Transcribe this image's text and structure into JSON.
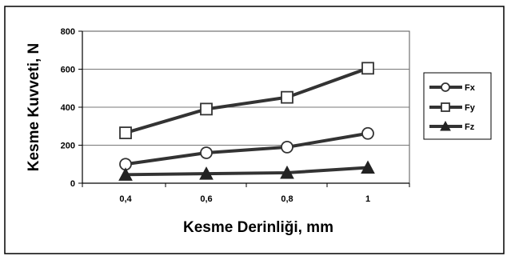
{
  "chart_data": {
    "type": "line",
    "title": "",
    "xlabel": "Kesme Derinliği, mm",
    "ylabel": "Kesme Kuvveti, N",
    "x": [
      "0,4",
      "0,6",
      "0,8",
      "1"
    ],
    "ylim": [
      0,
      800
    ],
    "yticks": [
      "0",
      "200",
      "400",
      "600",
      "800"
    ],
    "grid": "horizontal",
    "legend_position": "right",
    "series": [
      {
        "name": "Fx",
        "marker": "circle",
        "values": [
          100,
          160,
          190,
          262
        ]
      },
      {
        "name": "Fy",
        "marker": "square",
        "values": [
          265,
          390,
          452,
          605
        ]
      },
      {
        "name": "Fz",
        "marker": "triangle",
        "values": [
          45,
          50,
          55,
          82
        ]
      }
    ],
    "line_color": "#333333",
    "marker_fill": "#ffffff",
    "triangle_fill": "#222222"
  }
}
